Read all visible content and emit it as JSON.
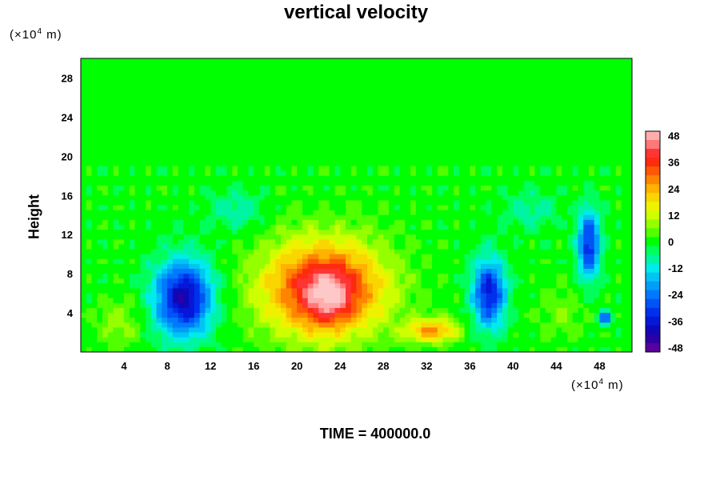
{
  "chart_data": {
    "type": "heatmap",
    "title": "vertical velocity",
    "ylabel": "Height",
    "xlabel": "",
    "x_unit": {
      "prefix": "(×10",
      "exp": "4",
      "suffix": " m)"
    },
    "y_unit": {
      "prefix": "(×10",
      "exp": "4",
      "suffix": " m)"
    },
    "xlim": [
      0,
      51
    ],
    "ylim": [
      0,
      30
    ],
    "x_ticks": [
      4,
      8,
      12,
      16,
      20,
      24,
      28,
      32,
      36,
      40,
      44,
      48
    ],
    "y_ticks": [
      4,
      8,
      12,
      16,
      20,
      24,
      28
    ],
    "colorbar": {
      "ticks": [
        48,
        36,
        24,
        12,
        0,
        -12,
        -24,
        -36,
        -48
      ],
      "range": [
        -50,
        50
      ]
    },
    "background_value": 0,
    "features": [
      {
        "kind": "updraft",
        "x": 22.5,
        "y": 6.5,
        "sx": 5.5,
        "sy": 4.8,
        "value": 42
      },
      {
        "kind": "updraft-core",
        "x": 23,
        "y": 5.5,
        "sx": 2.2,
        "sy": 2.6,
        "value": 14
      },
      {
        "kind": "updraft",
        "x": 32.5,
        "y": 2.2,
        "sx": 2.4,
        "sy": 1.2,
        "value": 26
      },
      {
        "kind": "downdraft",
        "x": 9.5,
        "y": 5.5,
        "sx": 2.6,
        "sy": 3.8,
        "value": -42
      },
      {
        "kind": "downdraft",
        "x": 37.8,
        "y": 6.0,
        "sx": 1.5,
        "sy": 3.5,
        "value": -36
      },
      {
        "kind": "downdraft",
        "x": 47.0,
        "y": 11.0,
        "sx": 1.0,
        "sy": 3.5,
        "value": -34
      },
      {
        "kind": "downdraft",
        "x": 48.5,
        "y": 3.5,
        "sx": 0.6,
        "sy": 0.7,
        "value": -30
      },
      {
        "kind": "weak-up",
        "x": 3.5,
        "y": 3.0,
        "sx": 2.0,
        "sy": 2.5,
        "value": 8
      },
      {
        "kind": "weak-up",
        "x": 44.5,
        "y": 4.0,
        "sx": 2.0,
        "sy": 2.5,
        "value": 6
      },
      {
        "kind": "weak-down",
        "x": 14.5,
        "y": 14.5,
        "sx": 2.5,
        "sy": 2.0,
        "value": -9
      },
      {
        "kind": "weak-down",
        "x": 41.5,
        "y": 14.5,
        "sx": 2.5,
        "sy": 2.0,
        "value": -8
      }
    ],
    "grid": false,
    "legend": "colorbar-right"
  },
  "time_label": "TIME = 400000.0"
}
